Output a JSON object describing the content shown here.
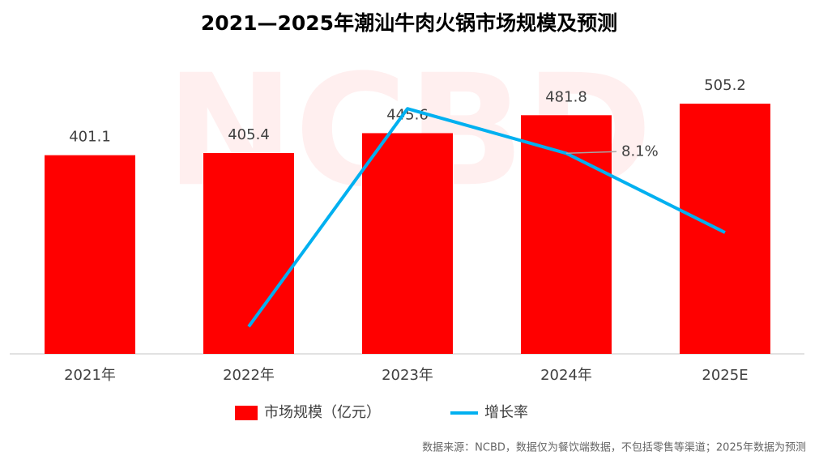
{
  "chart_data": {
    "type": "bar-line",
    "title": "2021—2025年潮汕牛肉火锅市场规模及预测",
    "watermark": "NCBD",
    "source": "数据来源：NCBD，数据仅为餐饮端数据，不包括零售等渠道；2025年数据为预测",
    "categories": [
      "2021年",
      "2022年",
      "2023年",
      "2024年",
      "2025E"
    ],
    "ylim": [
      0,
      600
    ],
    "y2lim": [
      0,
      12
    ],
    "series": [
      {
        "name": "市场规模（亿元）",
        "type": "bar",
        "color": "#ff0000",
        "values": [
          401.1,
          405.4,
          445.6,
          481.8,
          505.2
        ]
      },
      {
        "name": "增长率",
        "type": "line",
        "axis": "y2",
        "color": "#00b0f0",
        "values": [
          null,
          1.1,
          9.9,
          8.1,
          4.9
        ],
        "value_labels": [
          null,
          null,
          null,
          "8.1%",
          null
        ]
      }
    ]
  }
}
